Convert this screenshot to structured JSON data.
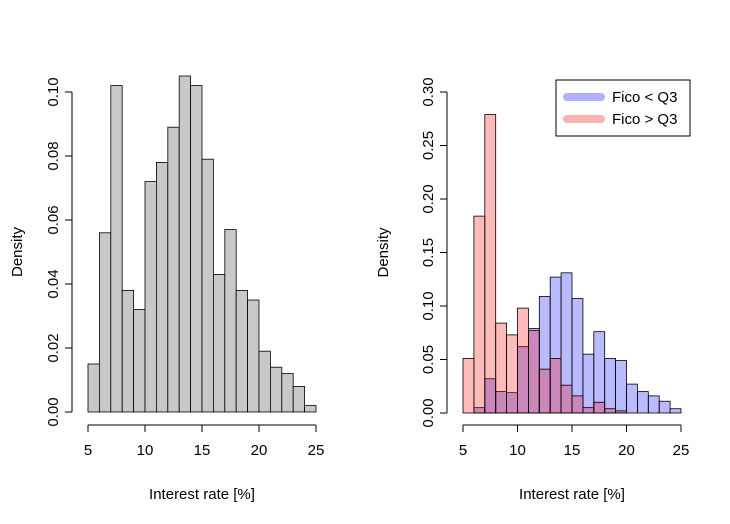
{
  "chart_data": [
    {
      "type": "bar",
      "subtype": "histogram",
      "xlabel": "Interest rate [%]",
      "ylabel": "Density",
      "xlim": [
        5,
        25
      ],
      "ylim": [
        0,
        0.105
      ],
      "xticks": [
        "5",
        "10",
        "15",
        "20",
        "25"
      ],
      "yticks": [
        "0.00",
        "0.02",
        "0.04",
        "0.06",
        "0.08",
        "0.10"
      ],
      "bin_width": 1,
      "series": [
        {
          "color": "#c8c8c8",
          "bins": [
            {
              "x0": 5,
              "x1": 6,
              "y": 0.015
            },
            {
              "x0": 6,
              "x1": 7,
              "y": 0.056
            },
            {
              "x0": 7,
              "x1": 8,
              "y": 0.102
            },
            {
              "x0": 8,
              "x1": 9,
              "y": 0.038
            },
            {
              "x0": 9,
              "x1": 10,
              "y": 0.032
            },
            {
              "x0": 10,
              "x1": 11,
              "y": 0.072
            },
            {
              "x0": 11,
              "x1": 12,
              "y": 0.078
            },
            {
              "x0": 12,
              "x1": 13,
              "y": 0.089
            },
            {
              "x0": 13,
              "x1": 14,
              "y": 0.105
            },
            {
              "x0": 14,
              "x1": 15,
              "y": 0.102
            },
            {
              "x0": 15,
              "x1": 16,
              "y": 0.079
            },
            {
              "x0": 16,
              "x1": 17,
              "y": 0.043
            },
            {
              "x0": 17,
              "x1": 18,
              "y": 0.057
            },
            {
              "x0": 18,
              "x1": 19,
              "y": 0.038
            },
            {
              "x0": 19,
              "x1": 20,
              "y": 0.035
            },
            {
              "x0": 20,
              "x1": 21,
              "y": 0.019
            },
            {
              "x0": 21,
              "x1": 22,
              "y": 0.014
            },
            {
              "x0": 22,
              "x1": 23,
              "y": 0.012
            },
            {
              "x0": 23,
              "x1": 24,
              "y": 0.008
            },
            {
              "x0": 24,
              "x1": 25,
              "y": 0.002
            }
          ]
        }
      ]
    },
    {
      "type": "bar",
      "subtype": "histogram",
      "xlabel": "Interest rate [%]",
      "ylabel": "Density",
      "xlim": [
        5,
        25
      ],
      "ylim": [
        0,
        0.3
      ],
      "xticks": [
        "5",
        "10",
        "15",
        "20",
        "25"
      ],
      "yticks": [
        "0.00",
        "0.05",
        "0.10",
        "0.15",
        "0.20",
        "0.25",
        "0.30"
      ],
      "legend_position": "top-right",
      "series": [
        {
          "name": "Fico < Q3",
          "color": "#0000ff",
          "opacity": 0.27,
          "bins": [
            {
              "x0": 6,
              "x1": 7,
              "y": 0.005
            },
            {
              "x0": 7,
              "x1": 8,
              "y": 0.032
            },
            {
              "x0": 8,
              "x1": 9,
              "y": 0.02
            },
            {
              "x0": 9,
              "x1": 10,
              "y": 0.019
            },
            {
              "x0": 10,
              "x1": 11,
              "y": 0.062
            },
            {
              "x0": 11,
              "x1": 12,
              "y": 0.079
            },
            {
              "x0": 12,
              "x1": 13,
              "y": 0.109
            },
            {
              "x0": 13,
              "x1": 14,
              "y": 0.127
            },
            {
              "x0": 14,
              "x1": 15,
              "y": 0.131
            },
            {
              "x0": 15,
              "x1": 16,
              "y": 0.107
            },
            {
              "x0": 16,
              "x1": 17,
              "y": 0.055
            },
            {
              "x0": 17,
              "x1": 18,
              "y": 0.076
            },
            {
              "x0": 18,
              "x1": 19,
              "y": 0.051
            },
            {
              "x0": 19,
              "x1": 20,
              "y": 0.049
            },
            {
              "x0": 20,
              "x1": 21,
              "y": 0.027
            },
            {
              "x0": 21,
              "x1": 22,
              "y": 0.02
            },
            {
              "x0": 22,
              "x1": 23,
              "y": 0.016
            },
            {
              "x0": 23,
              "x1": 24,
              "y": 0.011
            },
            {
              "x0": 24,
              "x1": 25,
              "y": 0.004
            }
          ]
        },
        {
          "name": "Fico > Q3",
          "color": "#ff0000",
          "opacity": 0.27,
          "bins": [
            {
              "x0": 5,
              "x1": 6,
              "y": 0.051
            },
            {
              "x0": 6,
              "x1": 7,
              "y": 0.184
            },
            {
              "x0": 7,
              "x1": 8,
              "y": 0.279
            },
            {
              "x0": 8,
              "x1": 9,
              "y": 0.084
            },
            {
              "x0": 9,
              "x1": 10,
              "y": 0.073
            },
            {
              "x0": 10,
              "x1": 11,
              "y": 0.098
            },
            {
              "x0": 11,
              "x1": 12,
              "y": 0.077
            },
            {
              "x0": 12,
              "x1": 13,
              "y": 0.041
            },
            {
              "x0": 13,
              "x1": 14,
              "y": 0.051
            },
            {
              "x0": 14,
              "x1": 15,
              "y": 0.026
            },
            {
              "x0": 15,
              "x1": 16,
              "y": 0.016
            },
            {
              "x0": 16,
              "x1": 17,
              "y": 0.005
            },
            {
              "x0": 17,
              "x1": 18,
              "y": 0.01
            },
            {
              "x0": 18,
              "x1": 19,
              "y": 0.004
            },
            {
              "x0": 19,
              "x1": 20,
              "y": 0.002
            }
          ]
        }
      ]
    }
  ]
}
